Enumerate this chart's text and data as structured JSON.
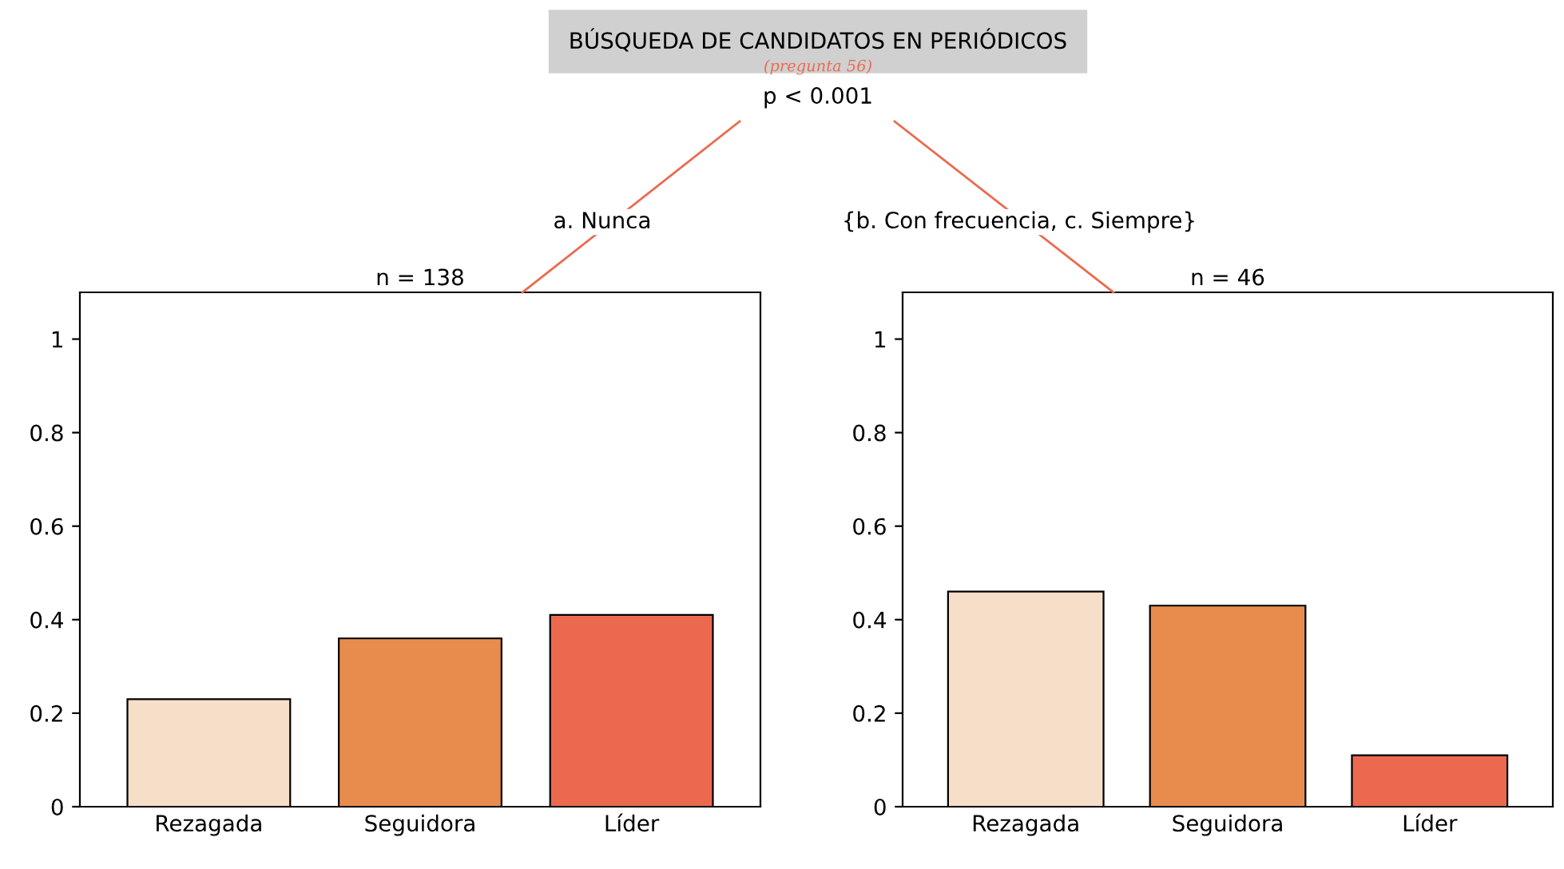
{
  "chart_data": [
    {
      "type": "bar",
      "title": "BÚSQUEDA DE CANDIDATOS EN PERIÓDICOS",
      "subtitle": "(pregunta 56)",
      "annotations": [
        "p < 0.001",
        "a. Nunca",
        "n = 138"
      ],
      "categories": [
        "Rezagada",
        "Seguidora",
        "Líder"
      ],
      "values": [
        0.23,
        0.36,
        0.41
      ],
      "colors": [
        "#f7dec8",
        "#e88c4e",
        "#eb6a4f"
      ],
      "ylim": [
        0,
        1.1
      ],
      "yticks": [
        0,
        0.2,
        0.4,
        0.6,
        0.8,
        1
      ],
      "grid": false
    },
    {
      "type": "bar",
      "annotations": [
        "{b. Con frecuencia, c. Siempre}",
        "n = 46"
      ],
      "categories": [
        "Rezagada",
        "Seguidora",
        "Líder"
      ],
      "values": [
        0.46,
        0.43,
        0.11
      ],
      "colors": [
        "#f7dec8",
        "#e88c4e",
        "#eb6a4f"
      ],
      "ylim": [
        0,
        1.1
      ],
      "yticks": [
        0,
        0.2,
        0.4,
        0.6,
        0.8,
        1
      ],
      "grid": false
    }
  ]
}
